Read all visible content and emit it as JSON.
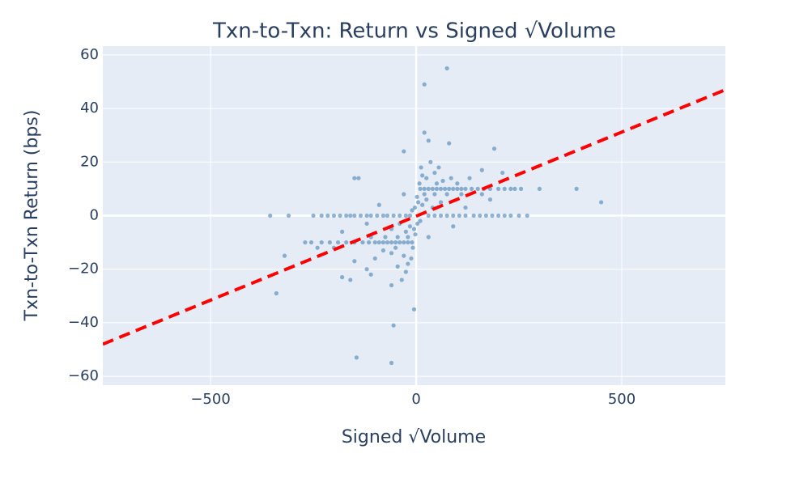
{
  "chart_data": {
    "type": "scatter",
    "title": "Txn-to-Txn: Return vs Signed √Volume",
    "x_label": "Signed √Volume",
    "y_label": "Txn-to-Txn Return (bps)",
    "xlim": [
      -762,
      752
    ],
    "ylim": [
      -63.3,
      63.3
    ],
    "xticks": [
      {
        "value": -500,
        "label": "−500"
      },
      0,
      500
    ],
    "yticks": [
      {
        "value": -60,
        "label": "−60"
      },
      {
        "value": -40,
        "label": "−40"
      },
      {
        "value": -20,
        "label": "−20"
      },
      0,
      20,
      40,
      60
    ],
    "grid": true,
    "background": "#e5ecf6",
    "series": [
      {
        "mode": "markers",
        "color": "#4682b4",
        "x": [
          -250,
          -230,
          -215,
          -200,
          -185,
          -170,
          -160,
          -150,
          -135,
          -120,
          -110,
          -95,
          -80,
          -70,
          -55,
          -40,
          -25,
          -15,
          30,
          45,
          60,
          75,
          90,
          105,
          120,
          140,
          155,
          170,
          185,
          200,
          215,
          230,
          250,
          270,
          10,
          20,
          30,
          40,
          50,
          60,
          70,
          80,
          90,
          100,
          110,
          120,
          135,
          150,
          165,
          180,
          200,
          215,
          230,
          255,
          300,
          -10,
          -20,
          -30,
          -40,
          -50,
          -60,
          -70,
          -80,
          -90,
          -100,
          -115,
          -130,
          -150,
          -170,
          -190,
          -210,
          -230,
          -255,
          -270,
          -20,
          -45,
          -75,
          -110,
          20,
          45,
          75,
          110,
          160,
          5,
          8,
          12,
          15,
          25,
          35,
          45,
          55,
          65,
          85,
          100,
          -5,
          -8,
          -12,
          -20,
          -30,
          -45,
          -60,
          -80,
          -100,
          -120,
          -3,
          3,
          -10,
          10,
          2,
          -2,
          15,
          -15,
          25,
          -25,
          40,
          -40,
          60,
          -60,
          90,
          -90,
          130,
          160,
          210,
          -150,
          -110,
          -35,
          -25,
          -50,
          50,
          30,
          -30,
          120,
          -120,
          180,
          -180,
          240,
          -240,
          75,
          20,
          -145,
          -55,
          -5,
          -60,
          450,
          390,
          -355,
          -310,
          -340,
          -320,
          -180,
          -160,
          20,
          30,
          80,
          190,
          -30,
          -150,
          -140,
          -200,
          -60
        ],
        "values": [
          0,
          0,
          0,
          0,
          0,
          0,
          0,
          0,
          0,
          0,
          0,
          0,
          0,
          0,
          0,
          0,
          0,
          0,
          0,
          0,
          0,
          0,
          0,
          0,
          0,
          0,
          0,
          0,
          0,
          0,
          0,
          0,
          0,
          0,
          10,
          10,
          10,
          10,
          10,
          10,
          10,
          10,
          10,
          10,
          10,
          10,
          10,
          10,
          10,
          10,
          10,
          10,
          10,
          10,
          10,
          -10,
          -10,
          -10,
          -10,
          -10,
          -10,
          -10,
          -10,
          -10,
          -10,
          -10,
          -10,
          -10,
          -10,
          -10,
          -10,
          -10,
          -10,
          -10,
          -8,
          -8,
          -8,
          -8,
          8,
          8,
          8,
          8,
          8,
          5,
          12,
          18,
          15,
          14,
          20,
          16,
          18,
          13,
          14,
          12,
          -5,
          -12,
          -16,
          -18,
          -15,
          -19,
          -14,
          -13,
          -16,
          -20,
          3,
          -3,
          2,
          -2,
          7,
          -7,
          4,
          -4,
          6,
          -6,
          3,
          -3,
          5,
          -5,
          -4,
          4,
          14,
          17,
          16,
          -17,
          -22,
          -24,
          -21,
          -12,
          12,
          -8,
          8,
          3,
          -3,
          6,
          -6,
          10,
          -12,
          55,
          49,
          -53,
          -41,
          -35,
          -55,
          5,
          10,
          0,
          0,
          -29,
          -15,
          -23,
          -24,
          31,
          28,
          27,
          25,
          24,
          14,
          14,
          -12,
          -26
        ]
      },
      {
        "mode": "line",
        "color": "#ff0000",
        "dash": true,
        "x": [
          -762,
          752
        ],
        "values": [
          -48,
          47
        ]
      }
    ]
  }
}
